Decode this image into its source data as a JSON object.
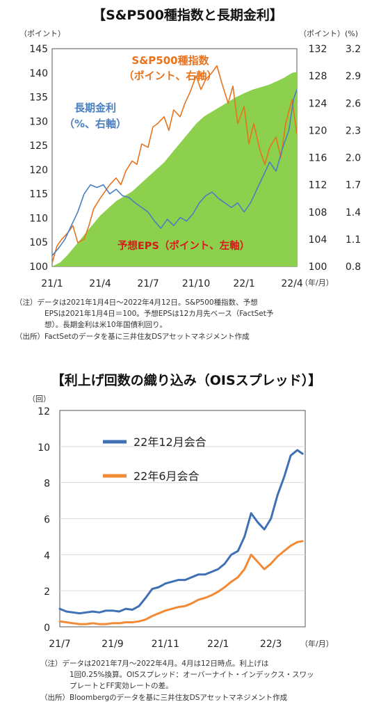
{
  "chart1": {
    "title": "【S&P500種指数と長期金利】",
    "left_unit": "（ポイント）",
    "right_unit_mid": "（ポイント）",
    "right_unit_far": "(%)",
    "period_unit": "（年/月）",
    "annotation_sp": [
      "S&P500種指数",
      "（ポイント、右軸）"
    ],
    "annotation_rate": [
      "長期金利",
      "（%、右軸）"
    ],
    "annotation_eps": "予想EPS（ポイント、左軸）",
    "notes": [
      "（注）データは2021年1月4日～2022年4月12日。S&P500種指数、予想",
      "EPSは2021年1月4日＝100。予想EPSは12カ月先ベース（FactSet予",
      "想）。長期金利は米10年国債利回り。",
      "（出所）FactSetのデータを基に三井住友DSアセットマネジメント作成"
    ],
    "colors": {
      "eps": "#8dd04e",
      "sp": "#e8731c",
      "rate": "#4a7fc1"
    },
    "chart_data": {
      "type": "line",
      "x_ticks": [
        "21/1",
        "21/4",
        "21/7",
        "21/10",
        "22/1",
        "22/4"
      ],
      "left_axis": {
        "ticks": [
          100,
          105,
          110,
          115,
          120,
          125,
          130,
          135,
          140,
          145
        ],
        "ylim": [
          100,
          145
        ]
      },
      "right_axis_sp": {
        "ticks": [
          100,
          104,
          108,
          112,
          116,
          120,
          124,
          128,
          132
        ],
        "ylim": [
          100,
          132
        ]
      },
      "right_axis_rate": {
        "ticks": [
          "0.8",
          "1.1",
          "1.4",
          "1.7",
          "2.0",
          "2.3",
          "2.6",
          "2.9",
          "3.2"
        ],
        "ylim": [
          0.8,
          3.2
        ]
      },
      "series": [
        {
          "name": "予想EPS（ポイント、左軸）",
          "kind": "area",
          "axis": "left",
          "x": [
            0,
            0.5,
            1,
            1.5,
            2,
            2.5,
            3,
            3.5,
            4,
            4.5,
            5,
            5.5,
            6,
            6.5,
            7,
            7.5,
            8,
            8.5,
            9,
            9.5,
            10,
            10.5,
            11,
            11.5,
            12,
            12.5,
            13,
            13.5,
            14,
            14.5,
            15,
            15.3
          ],
          "values": [
            100,
            100.8,
            102.5,
            104.5,
            106.5,
            108.5,
            110.5,
            112,
            113.5,
            114.5,
            115.5,
            117,
            118.5,
            120,
            121.5,
            123.5,
            125.5,
            127.5,
            129.5,
            131,
            132,
            133,
            134,
            135,
            135.8,
            136.5,
            137,
            137.5,
            138.2,
            139,
            140,
            140.2
          ]
        },
        {
          "name": "S&P500種指数（ポイント、右軸）",
          "kind": "line",
          "axis": "sp",
          "x": [
            0,
            0.3,
            0.6,
            1,
            1.3,
            1.6,
            2,
            2.3,
            2.6,
            3,
            3.3,
            3.6,
            4,
            4.3,
            4.6,
            5,
            5.3,
            5.6,
            6,
            6.3,
            6.6,
            7,
            7.3,
            7.6,
            8,
            8.3,
            8.6,
            9,
            9.3,
            9.6,
            10,
            10.3,
            10.6,
            11,
            11.3,
            11.6,
            12,
            12.3,
            12.6,
            13,
            13.3,
            13.6,
            14,
            14.3,
            14.6,
            15,
            15.3
          ],
          "values": [
            100.5,
            103,
            104,
            105,
            106,
            103.5,
            104,
            106,
            108.5,
            110,
            111,
            112,
            113,
            112,
            114,
            115.5,
            115,
            118,
            117.5,
            120.5,
            121,
            122,
            120,
            123,
            122,
            124,
            125.5,
            128,
            126,
            127.5,
            128.5,
            129.5,
            127,
            124,
            126.5,
            121,
            123.5,
            118,
            121,
            117,
            115,
            117.5,
            119,
            116,
            121,
            124.5,
            119.5
          ]
        },
        {
          "name": "長期金利（%、右軸）",
          "kind": "line",
          "axis": "rate",
          "x": [
            0,
            0.4,
            0.8,
            1.2,
            1.6,
            2,
            2.4,
            2.8,
            3.2,
            3.6,
            4,
            4.4,
            4.8,
            5.2,
            5.6,
            6,
            6.4,
            6.8,
            7.2,
            7.6,
            8,
            8.4,
            8.8,
            9.2,
            9.6,
            10,
            10.4,
            10.8,
            11.2,
            11.6,
            12,
            12.4,
            12.8,
            13.2,
            13.6,
            14,
            14.4,
            14.8,
            15.1,
            15.3
          ],
          "values": [
            0.92,
            1.0,
            1.1,
            1.25,
            1.4,
            1.6,
            1.7,
            1.67,
            1.7,
            1.6,
            1.65,
            1.58,
            1.56,
            1.5,
            1.45,
            1.4,
            1.3,
            1.22,
            1.32,
            1.25,
            1.34,
            1.3,
            1.38,
            1.5,
            1.58,
            1.62,
            1.55,
            1.5,
            1.45,
            1.5,
            1.4,
            1.5,
            1.65,
            1.8,
            1.95,
            1.85,
            2.1,
            2.3,
            2.65,
            2.75
          ]
        }
      ]
    }
  },
  "chart2": {
    "title": "【利上げ回数の織り込み（OISスプレッド）】",
    "y_unit": "（回）",
    "period_unit": "（年/月）",
    "notes": [
      "（注）データは2021年7月～2022年4月。4月は12日時点。利上げは",
      "1回0.25%換算。OISスプレッド：オーバーナイト・インデックス・スワッ",
      "プレートとFF実効レートの差。",
      "（出所）Bloombergのデータを基に三井住友DSアセットマネジメント作成"
    ],
    "colors": {
      "dec": "#3f70b5",
      "jun": "#f28a35"
    },
    "chart_data": {
      "type": "line",
      "x_ticks": [
        "21/7",
        "21/9",
        "21/11",
        "22/1",
        "22/3"
      ],
      "ylim": [
        0,
        12
      ],
      "y_ticks": [
        0,
        2,
        4,
        6,
        8,
        10,
        12
      ],
      "series": [
        {
          "name": "22年12月会合",
          "x": [
            0,
            0.25,
            0.5,
            0.75,
            1,
            1.25,
            1.5,
            1.75,
            2,
            2.25,
            2.5,
            2.75,
            3,
            3.25,
            3.5,
            3.75,
            4,
            4.25,
            4.5,
            4.75,
            5,
            5.25,
            5.5,
            5.75,
            6,
            6.25,
            6.5,
            6.75,
            7,
            7.25,
            7.5,
            7.75,
            8,
            8.25,
            8.5,
            8.75,
            9,
            9.2
          ],
          "values": [
            1.0,
            0.85,
            0.8,
            0.75,
            0.8,
            0.85,
            0.8,
            0.9,
            0.9,
            0.85,
            1.0,
            0.95,
            1.15,
            1.6,
            2.1,
            2.2,
            2.4,
            2.5,
            2.6,
            2.6,
            2.75,
            2.9,
            2.9,
            3.05,
            3.2,
            3.5,
            4.0,
            4.2,
            5.0,
            6.3,
            5.8,
            5.4,
            6.0,
            7.3,
            8.3,
            9.5,
            9.8,
            9.6
          ]
        },
        {
          "name": "22年6月会合",
          "x": [
            0,
            0.25,
            0.5,
            0.75,
            1,
            1.25,
            1.5,
            1.75,
            2,
            2.25,
            2.5,
            2.75,
            3,
            3.25,
            3.5,
            3.75,
            4,
            4.25,
            4.5,
            4.75,
            5,
            5.25,
            5.5,
            5.75,
            6,
            6.25,
            6.5,
            6.75,
            7,
            7.25,
            7.5,
            7.75,
            8,
            8.25,
            8.5,
            8.75,
            9,
            9.2
          ],
          "values": [
            0.3,
            0.25,
            0.2,
            0.15,
            0.15,
            0.2,
            0.15,
            0.15,
            0.2,
            0.2,
            0.25,
            0.25,
            0.3,
            0.4,
            0.6,
            0.75,
            0.9,
            1.0,
            1.1,
            1.15,
            1.3,
            1.5,
            1.6,
            1.75,
            1.95,
            2.2,
            2.5,
            2.75,
            3.2,
            4.0,
            3.6,
            3.2,
            3.5,
            3.9,
            4.2,
            4.5,
            4.7,
            4.75
          ]
        }
      ]
    }
  }
}
